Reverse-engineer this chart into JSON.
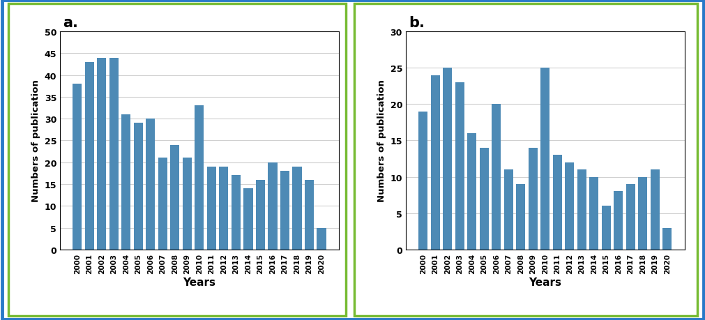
{
  "years": [
    "2000",
    "2001",
    "2002",
    "2003",
    "2004",
    "2005",
    "2006",
    "2007",
    "2008",
    "2009",
    "2010",
    "2011",
    "2012",
    "2013",
    "2014",
    "2015",
    "2016",
    "2017",
    "2018",
    "2019",
    "2020"
  ],
  "values_a": [
    38,
    43,
    44,
    44,
    31,
    29,
    30,
    21,
    24,
    21,
    33,
    19,
    19,
    17,
    14,
    16,
    20,
    18,
    19,
    16,
    5
  ],
  "values_b": [
    19,
    24,
    25,
    23,
    16,
    14,
    20,
    11,
    9,
    14,
    25,
    13,
    12,
    11,
    10,
    6,
    8,
    9,
    10,
    11,
    3
  ],
  "bar_color": "#4d8ab5",
  "ylabel": "Numbers of publication",
  "xlabel": "Years",
  "label_a": "a.",
  "label_b": "b.",
  "ylim_a": [
    0,
    50
  ],
  "ylim_b": [
    0,
    30
  ],
  "yticks_a": [
    0,
    5,
    10,
    15,
    20,
    25,
    30,
    35,
    40,
    45,
    50
  ],
  "yticks_b": [
    0,
    5,
    10,
    15,
    20,
    25,
    30
  ],
  "outer_border_color": "#2979c8",
  "inner_border_color": "#77bb33",
  "bg_color": "#ffffff",
  "grid_color": "#d0d0d0"
}
